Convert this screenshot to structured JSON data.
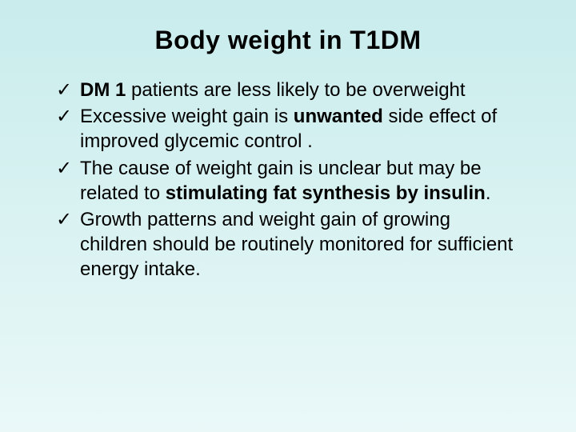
{
  "background": {
    "gradient_from": "#c9ecec",
    "gradient_to": "#eaf8f8",
    "angle_deg": 180
  },
  "title": {
    "text": "Body weight in T1DM",
    "font_size": 32,
    "font_weight": "bold",
    "color": "#000000"
  },
  "bullet_marker": "✓",
  "bullet_font_size": 24,
  "text_color": "#000000",
  "bullets": [
    {
      "segments": [
        {
          "text": "DM 1",
          "bold": true
        },
        {
          "text": "  patients are less likely to be overweight",
          "bold": false
        }
      ]
    },
    {
      "segments": [
        {
          "text": "Excessive weight gain is ",
          "bold": false
        },
        {
          "text": "unwanted",
          "bold": true
        },
        {
          "text": " side effect of improved glycemic control .",
          "bold": false
        }
      ]
    },
    {
      "segments": [
        {
          "text": "The cause of weight gain is unclear but may be related to ",
          "bold": false
        },
        {
          "text": "stimulating fat synthesis by insulin",
          "bold": true
        },
        {
          "text": ".",
          "bold": false
        }
      ]
    },
    {
      "segments": [
        {
          "text": "Growth patterns and weight gain of growing children should be routinely monitored for sufficient energy intake.",
          "bold": false
        }
      ]
    }
  ]
}
